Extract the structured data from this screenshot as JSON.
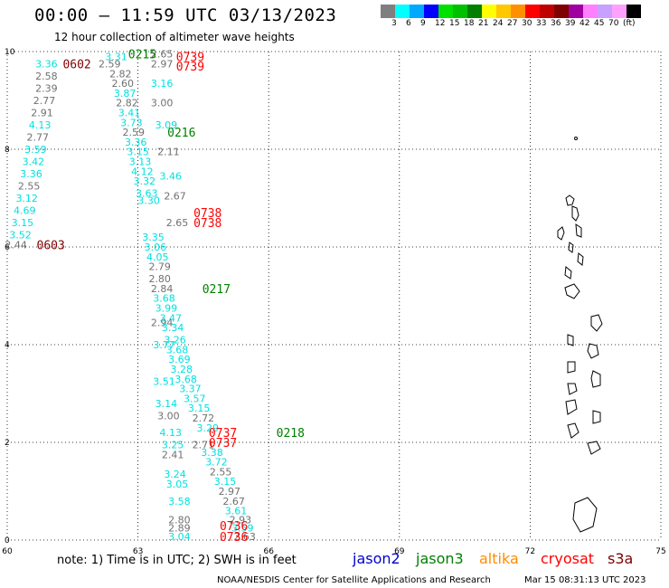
{
  "header": {
    "title": "00:00 – 11:59 UTC 03/13/2023",
    "subtitle": "12 hour collection of altimeter wave heights"
  },
  "legend": {
    "colors": [
      "#7f7f7f",
      "#00ffff",
      "#00a8ff",
      "#0000ff",
      "#00e000",
      "#00c000",
      "#008000",
      "#ffff00",
      "#ffc800",
      "#ff9000",
      "#ff0000",
      "#c00000",
      "#800000",
      "#a000a0",
      "#ff80ff",
      "#c8a0ff",
      "#ffa0ff",
      "#000000"
    ],
    "labels": [
      "3",
      "6",
      "9",
      "12",
      "15",
      "18",
      "21",
      "24",
      "27",
      "30",
      "33",
      "36",
      "39",
      "42",
      "45",
      "70",
      "(ft)"
    ]
  },
  "axes": {
    "x_ticks": [
      "60",
      "63",
      "66",
      "69",
      "72",
      "75"
    ],
    "y_ticks": [
      "0",
      "2",
      "4",
      "6",
      "8",
      "10"
    ],
    "lon_range": [
      60,
      75
    ],
    "lat_range": [
      0,
      10
    ],
    "grid": true
  },
  "swh_labels": [
    {
      "text": "3.31",
      "lon": 62.5,
      "lat": 9.9,
      "color": "#00e0e0"
    },
    {
      "text": "3.36",
      "lon": 60.9,
      "lat": 9.75,
      "color": "#00e0e0"
    },
    {
      "text": "2.59",
      "lon": 62.35,
      "lat": 9.75,
      "color": "#707070"
    },
    {
      "text": "2.58",
      "lon": 60.9,
      "lat": 9.5,
      "color": "#707070"
    },
    {
      "text": "2.82",
      "lon": 62.6,
      "lat": 9.55,
      "color": "#707070"
    },
    {
      "text": "2.39",
      "lon": 60.9,
      "lat": 9.25,
      "color": "#707070"
    },
    {
      "text": "2.60",
      "lon": 62.65,
      "lat": 9.35,
      "color": "#707070"
    },
    {
      "text": "2.77",
      "lon": 60.85,
      "lat": 9.0,
      "color": "#707070"
    },
    {
      "text": "3.87",
      "lon": 62.7,
      "lat": 9.15,
      "color": "#00e0e0"
    },
    {
      "text": "2.91",
      "lon": 60.8,
      "lat": 8.75,
      "color": "#707070"
    },
    {
      "text": "2.82",
      "lon": 62.75,
      "lat": 8.95,
      "color": "#707070"
    },
    {
      "text": "4.13",
      "lon": 60.75,
      "lat": 8.5,
      "color": "#00e0e0"
    },
    {
      "text": "3.41",
      "lon": 62.8,
      "lat": 8.75,
      "color": "#00e0e0"
    },
    {
      "text": "2.77",
      "lon": 60.7,
      "lat": 8.25,
      "color": "#707070"
    },
    {
      "text": "3.73",
      "lon": 62.85,
      "lat": 8.55,
      "color": "#00e0e0"
    },
    {
      "text": "3.59",
      "lon": 60.65,
      "lat": 8.0,
      "color": "#00e0e0"
    },
    {
      "text": "2.59",
      "lon": 62.9,
      "lat": 8.35,
      "color": "#707070"
    },
    {
      "text": "3.42",
      "lon": 60.6,
      "lat": 7.75,
      "color": "#00e0e0"
    },
    {
      "text": "3.36",
      "lon": 62.95,
      "lat": 8.15,
      "color": "#00e0e0"
    },
    {
      "text": "3.36",
      "lon": 60.55,
      "lat": 7.5,
      "color": "#00e0e0"
    },
    {
      "text": "3.15",
      "lon": 63.0,
      "lat": 7.95,
      "color": "#00e0e0"
    },
    {
      "text": "2.55",
      "lon": 60.5,
      "lat": 7.25,
      "color": "#707070"
    },
    {
      "text": "3.13",
      "lon": 63.05,
      "lat": 7.75,
      "color": "#00e0e0"
    },
    {
      "text": "3.12",
      "lon": 60.45,
      "lat": 7.0,
      "color": "#00e0e0"
    },
    {
      "text": "4.12",
      "lon": 63.1,
      "lat": 7.55,
      "color": "#00e0e0"
    },
    {
      "text": "4.69",
      "lon": 60.4,
      "lat": 6.75,
      "color": "#00e0e0"
    },
    {
      "text": "3.32",
      "lon": 63.15,
      "lat": 7.35,
      "color": "#00e0e0"
    },
    {
      "text": "3.15",
      "lon": 60.35,
      "lat": 6.5,
      "color": "#00e0e0"
    },
    {
      "text": "3.52",
      "lon": 60.3,
      "lat": 6.25,
      "color": "#00e0e0"
    },
    {
      "text": "3.63",
      "lon": 63.2,
      "lat": 7.1,
      "color": "#00e0e0"
    },
    {
      "text": "2.44",
      "lon": 60.2,
      "lat": 6.05,
      "color": "#707070"
    },
    {
      "text": "3.30",
      "lon": 63.25,
      "lat": 6.95,
      "color": "#00e0e0"
    },
    {
      "text": "3.35",
      "lon": 63.35,
      "lat": 6.2,
      "color": "#00e0e0"
    },
    {
      "text": "3.06",
      "lon": 63.4,
      "lat": 6.0,
      "color": "#00e0e0"
    },
    {
      "text": "4.05",
      "lon": 63.45,
      "lat": 5.8,
      "color": "#00e0e0"
    },
    {
      "text": "2.79",
      "lon": 63.5,
      "lat": 5.6,
      "color": "#707070"
    },
    {
      "text": "2.80",
      "lon": 63.5,
      "lat": 5.35,
      "color": "#707070"
    },
    {
      "text": "2.84",
      "lon": 63.55,
      "lat": 5.15,
      "color": "#707070"
    },
    {
      "text": "3.68",
      "lon": 63.6,
      "lat": 4.95,
      "color": "#00e0e0"
    },
    {
      "text": "3.99",
      "lon": 63.65,
      "lat": 4.75,
      "color": "#00e0e0"
    },
    {
      "text": "3.47",
      "lon": 63.75,
      "lat": 4.55,
      "color": "#00e0e0"
    },
    {
      "text": "2.94",
      "lon": 63.55,
      "lat": 4.45,
      "color": "#707070"
    },
    {
      "text": "3.34",
      "lon": 63.8,
      "lat": 4.35,
      "color": "#00e0e0"
    },
    {
      "text": "3.26",
      "lon": 63.85,
      "lat": 4.1,
      "color": "#00e0e0"
    },
    {
      "text": "3.77",
      "lon": 63.6,
      "lat": 4.0,
      "color": "#00e0e0"
    },
    {
      "text": "3.68",
      "lon": 63.9,
      "lat": 3.9,
      "color": "#00e0e0"
    },
    {
      "text": "3.69",
      "lon": 63.95,
      "lat": 3.7,
      "color": "#00e0e0"
    },
    {
      "text": "3.28",
      "lon": 64.0,
      "lat": 3.5,
      "color": "#00e0e0"
    },
    {
      "text": "3.68",
      "lon": 64.1,
      "lat": 3.3,
      "color": "#00e0e0"
    },
    {
      "text": "3.51",
      "lon": 63.6,
      "lat": 3.25,
      "color": "#00e0e0"
    },
    {
      "text": "3.37",
      "lon": 64.2,
      "lat": 3.1,
      "color": "#00e0e0"
    },
    {
      "text": "3.57",
      "lon": 64.3,
      "lat": 2.9,
      "color": "#00e0e0"
    },
    {
      "text": "3.14",
      "lon": 63.65,
      "lat": 2.8,
      "color": "#00e0e0"
    },
    {
      "text": "3.15",
      "lon": 64.4,
      "lat": 2.7,
      "color": "#00e0e0"
    },
    {
      "text": "2.72",
      "lon": 64.5,
      "lat": 2.5,
      "color": "#707070"
    },
    {
      "text": "3.00",
      "lon": 63.7,
      "lat": 2.55,
      "color": "#707070"
    },
    {
      "text": "3.29",
      "lon": 64.6,
      "lat": 2.3,
      "color": "#00e0e0"
    },
    {
      "text": "4.13",
      "lon": 63.75,
      "lat": 2.2,
      "color": "#00e0e0"
    },
    {
      "text": "3.25",
      "lon": 63.8,
      "lat": 1.95,
      "color": "#00e0e0"
    },
    {
      "text": "2.71",
      "lon": 64.5,
      "lat": 1.95,
      "color": "#707070"
    },
    {
      "text": "3.38",
      "lon": 64.7,
      "lat": 1.8,
      "color": "#00e0e0"
    },
    {
      "text": "2.41",
      "lon": 63.8,
      "lat": 1.75,
      "color": "#707070"
    },
    {
      "text": "3.72",
      "lon": 64.8,
      "lat": 1.6,
      "color": "#00e0e0"
    },
    {
      "text": "2.55",
      "lon": 64.9,
      "lat": 1.4,
      "color": "#707070"
    },
    {
      "text": "3.24",
      "lon": 63.85,
      "lat": 1.35,
      "color": "#00e0e0"
    },
    {
      "text": "3.15",
      "lon": 65.0,
      "lat": 1.2,
      "color": "#00e0e0"
    },
    {
      "text": "3.05",
      "lon": 63.9,
      "lat": 1.15,
      "color": "#00e0e0"
    },
    {
      "text": "2.97",
      "lon": 65.1,
      "lat": 1.0,
      "color": "#707070"
    },
    {
      "text": "2.67",
      "lon": 65.2,
      "lat": 0.8,
      "color": "#707070"
    },
    {
      "text": "3.58",
      "lon": 63.95,
      "lat": 0.8,
      "color": "#00e0e0"
    },
    {
      "text": "3.61",
      "lon": 65.25,
      "lat": 0.6,
      "color": "#00e0e0"
    },
    {
      "text": "2.93",
      "lon": 65.35,
      "lat": 0.42,
      "color": "#707070"
    },
    {
      "text": "2.80",
      "lon": 63.95,
      "lat": 0.42,
      "color": "#707070"
    },
    {
      "text": "3.59",
      "lon": 65.4,
      "lat": 0.25,
      "color": "#00e0e0"
    },
    {
      "text": "2.89",
      "lon": 63.95,
      "lat": 0.25,
      "color": "#707070"
    },
    {
      "text": "2.63",
      "lon": 65.45,
      "lat": 0.07,
      "color": "#707070"
    },
    {
      "text": "3.04",
      "lon": 63.95,
      "lat": 0.07,
      "color": "#00e0e0"
    },
    {
      "text": "2.65",
      "lon": 63.55,
      "lat": 9.95,
      "color": "#707070"
    },
    {
      "text": "2.97",
      "lon": 63.55,
      "lat": 9.75,
      "color": "#707070"
    },
    {
      "text": "3.16",
      "lon": 63.55,
      "lat": 9.35,
      "color": "#00e0e0"
    },
    {
      "text": "3.00",
      "lon": 63.55,
      "lat": 8.95,
      "color": "#707070"
    },
    {
      "text": "3.09",
      "lon": 63.65,
      "lat": 8.5,
      "color": "#00e0e0"
    },
    {
      "text": "2.11",
      "lon": 63.7,
      "lat": 7.95,
      "color": "#707070"
    },
    {
      "text": "3.46",
      "lon": 63.75,
      "lat": 7.45,
      "color": "#00e0e0"
    },
    {
      "text": "2.67",
      "lon": 63.85,
      "lat": 7.05,
      "color": "#707070"
    },
    {
      "text": "2.65",
      "lon": 63.9,
      "lat": 6.5,
      "color": "#707070"
    }
  ],
  "time_labels": [
    {
      "text": "0215",
      "lon": 63.1,
      "lat": 9.95,
      "color": "#008000"
    },
    {
      "text": "0602",
      "lon": 61.6,
      "lat": 9.75,
      "color": "#800000"
    },
    {
      "text": "0739",
      "lon": 64.2,
      "lat": 9.9,
      "color": "#ff0000"
    },
    {
      "text": "0739",
      "lon": 64.2,
      "lat": 9.7,
      "color": "#ff0000"
    },
    {
      "text": "0216",
      "lon": 64.0,
      "lat": 8.35,
      "color": "#008000"
    },
    {
      "text": "0738",
      "lon": 64.6,
      "lat": 6.7,
      "color": "#ff0000"
    },
    {
      "text": "0738",
      "lon": 64.6,
      "lat": 6.5,
      "color": "#ff0000"
    },
    {
      "text": "0603",
      "lon": 61.0,
      "lat": 6.05,
      "color": "#800000"
    },
    {
      "text": "0217",
      "lon": 64.8,
      "lat": 5.15,
      "color": "#008000"
    },
    {
      "text": "0218",
      "lon": 66.5,
      "lat": 2.2,
      "color": "#008000"
    },
    {
      "text": "0737",
      "lon": 64.95,
      "lat": 2.2,
      "color": "#ff0000"
    },
    {
      "text": "0737",
      "lon": 64.95,
      "lat": 2.0,
      "color": "#ff0000"
    },
    {
      "text": "0736",
      "lon": 65.2,
      "lat": 0.3,
      "color": "#ff0000"
    },
    {
      "text": "0736",
      "lon": 65.2,
      "lat": 0.07,
      "color": "#ff0000"
    }
  ],
  "footer": {
    "note": "note: 1) Time is in UTC; 2) SWH is in feet",
    "satellites": [
      {
        "name": "jason2",
        "color": "#0000cc"
      },
      {
        "name": "jason3",
        "color": "#008000"
      },
      {
        "name": "altika",
        "color": "#ff8c00"
      },
      {
        "name": "cryosat",
        "color": "#ff0000"
      },
      {
        "name": "s3a",
        "color": "#800000"
      }
    ],
    "credit": "NOAA/NESDIS Center for Satellite Applications and Research",
    "date": "Mar 15 08:31:13 UTC 2023"
  }
}
